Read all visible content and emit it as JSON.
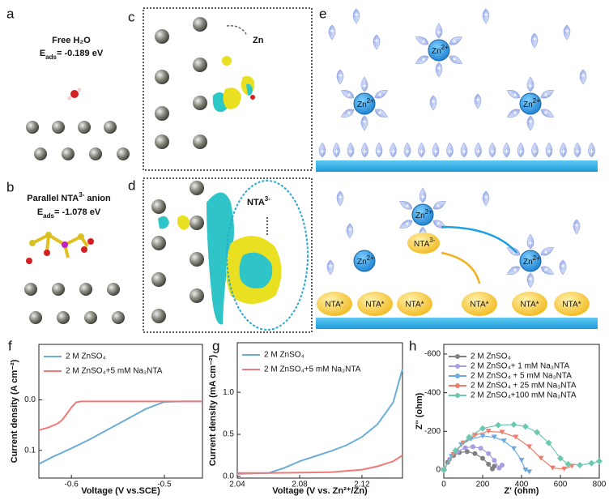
{
  "panels": {
    "a": {
      "letter": "a",
      "title": "Free H₂O",
      "energy": {
        "symbol": "E",
        "sub": "ads",
        "value": "= -0.189 eV"
      }
    },
    "b": {
      "letter": "b",
      "title": {
        "text": "Parallel NTA",
        "sup": "3-",
        "tail": " anion"
      },
      "energy": {
        "symbol": "E",
        "sub": "ads",
        "value": "= -1.078 eV"
      }
    },
    "c": {
      "letter": "c",
      "label": "Zn"
    },
    "d": {
      "letter": "d",
      "label": {
        "text": "NTA",
        "sup": "3-"
      }
    },
    "e": {
      "letter": "e",
      "zn_ions": [
        {
          "text": "Zn",
          "sup": "2+"
        },
        {
          "text": "Zn",
          "sup": "2+"
        },
        {
          "text": "Zn",
          "sup": "2+"
        },
        {
          "text": "Zn",
          "sup": "2+"
        },
        {
          "text": "Zn",
          "sup": "2+"
        },
        {
          "text": "Zn",
          "sup": "2+"
        }
      ],
      "nta_free": {
        "text": "NTA",
        "sup": "3-"
      },
      "nta_adsorbed": [
        "NTA*",
        "NTA*",
        "NTA*",
        "NTA*",
        "NTA*",
        "NTA*"
      ]
    }
  },
  "chart_data": [
    {
      "type": "line",
      "panel_label": "f",
      "xlabel": "Voltage (V vs.SCE)",
      "ylabel": "Current density (A cm⁻²)",
      "xlim": [
        -0.635,
        -0.459
      ],
      "xticks": [
        -0.6,
        -0.5
      ],
      "ylim": [
        0.155,
        -0.11
      ],
      "yticks": [
        {
          "value": 0,
          "label": "0.0"
        },
        0.1
      ],
      "series": [
        {
          "name": "2 M ZnSO₄",
          "color": "#6aaed6",
          "x": [
            -0.635,
            -0.62,
            -0.6,
            -0.58,
            -0.56,
            -0.54,
            -0.52,
            -0.5,
            -0.48,
            -0.46
          ],
          "values": [
            0.127,
            0.113,
            0.096,
            0.078,
            0.058,
            0.038,
            0.018,
            0.004,
            0.003,
            0.003
          ]
        },
        {
          "name": "2 M ZnSO₄+5 mM Na₃NTA",
          "color": "#f07a7a",
          "x": [
            -0.635,
            -0.625,
            -0.615,
            -0.61,
            -0.605,
            -0.6,
            -0.595,
            -0.59,
            -0.55,
            -0.5,
            -0.46
          ],
          "values": [
            0.06,
            0.055,
            0.047,
            0.04,
            0.028,
            0.015,
            0.005,
            0.003,
            0.003,
            0.003,
            0.003
          ]
        }
      ]
    },
    {
      "type": "line",
      "panel_label": "g",
      "xlabel": "Voltage (V vs. Zn²⁺/Zn)",
      "ylabel": "Current density (mA cm⁻²)",
      "xlim": [
        2.04,
        2.146
      ],
      "xticks": [
        2.04,
        2.08,
        2.12
      ],
      "ylim": [
        -0.02,
        1.59
      ],
      "yticks": [
        {
          "value": 0,
          "label": "0.0"
        },
        0.5,
        {
          "value": 1,
          "label": "1.0"
        }
      ],
      "series": [
        {
          "name": "2 M ZnSO₄",
          "color": "#6aaed6",
          "x": [
            2.04,
            2.06,
            2.07,
            2.08,
            2.09,
            2.1,
            2.11,
            2.12,
            2.13,
            2.14,
            2.146
          ],
          "values": [
            0.03,
            0.04,
            0.1,
            0.18,
            0.24,
            0.3,
            0.37,
            0.47,
            0.62,
            0.88,
            1.28
          ]
        },
        {
          "name": "2 M ZnSO₄+5 mM Na₃NTA",
          "color": "#f07a7a",
          "x": [
            2.04,
            2.06,
            2.08,
            2.1,
            2.12,
            2.13,
            2.14,
            2.146
          ],
          "values": [
            0.04,
            0.04,
            0.045,
            0.05,
            0.08,
            0.12,
            0.18,
            0.25
          ]
        }
      ]
    },
    {
      "type": "line",
      "panel_label": "h",
      "xlabel": "Z' (ohm)",
      "ylabel": "Z'' (ohm)",
      "markers": true,
      "xlim": [
        0,
        800
      ],
      "xticks": [
        0,
        200,
        400,
        600,
        800
      ],
      "ylim": [
        42,
        -650
      ],
      "yticks": [
        0,
        -200,
        -400,
        -600
      ],
      "series": [
        {
          "name": "2 M ZnSO₄",
          "color": "#808080",
          "marker": "circle",
          "x": [
            0,
            20,
            50,
            80,
            120,
            160,
            200,
            230,
            250,
            260
          ],
          "values": [
            0,
            -40,
            -75,
            -90,
            -95,
            -85,
            -60,
            -30,
            -5,
            -20
          ]
        },
        {
          "name": "2 M ZnSO₄+ 1 mM Na₃NTA",
          "color": "#a89de0",
          "marker": "circle",
          "x": [
            0,
            30,
            70,
            110,
            150,
            190,
            230,
            260,
            285,
            300
          ],
          "values": [
            0,
            -55,
            -95,
            -115,
            -120,
            -112,
            -85,
            -50,
            -10,
            -25
          ]
        },
        {
          "name": "2 M ZnSO₄ + 5 mM Na₃NTA",
          "color": "#6fa8dc",
          "marker": "triangle",
          "x": [
            0,
            40,
            90,
            140,
            200,
            260,
            310,
            360,
            400,
            420,
            440
          ],
          "values": [
            0,
            -70,
            -130,
            -160,
            -175,
            -170,
            -150,
            -110,
            -50,
            0,
            10
          ]
        },
        {
          "name": "2 M ZnSO₄ + 25 mM Na₃NTA",
          "color": "#f07b6a",
          "marker": "triangle",
          "x": [
            0,
            50,
            100,
            160,
            230,
            300,
            370,
            440,
            500,
            560,
            620,
            660
          ],
          "values": [
            0,
            -80,
            -140,
            -180,
            -200,
            -195,
            -170,
            -120,
            -60,
            -10,
            -5,
            -20
          ]
        },
        {
          "name": "2 M ZnSO₄+100 mM Na₃NTA",
          "color": "#6cc8b0",
          "marker": "diamond",
          "x": [
            0,
            60,
            130,
            200,
            280,
            360,
            420,
            480,
            540,
            600,
            640,
            700,
            760,
            800
          ],
          "values": [
            0,
            -100,
            -170,
            -215,
            -232,
            -235,
            -225,
            -195,
            -140,
            -60,
            -30,
            -25,
            -35,
            -45
          ]
        }
      ]
    }
  ]
}
